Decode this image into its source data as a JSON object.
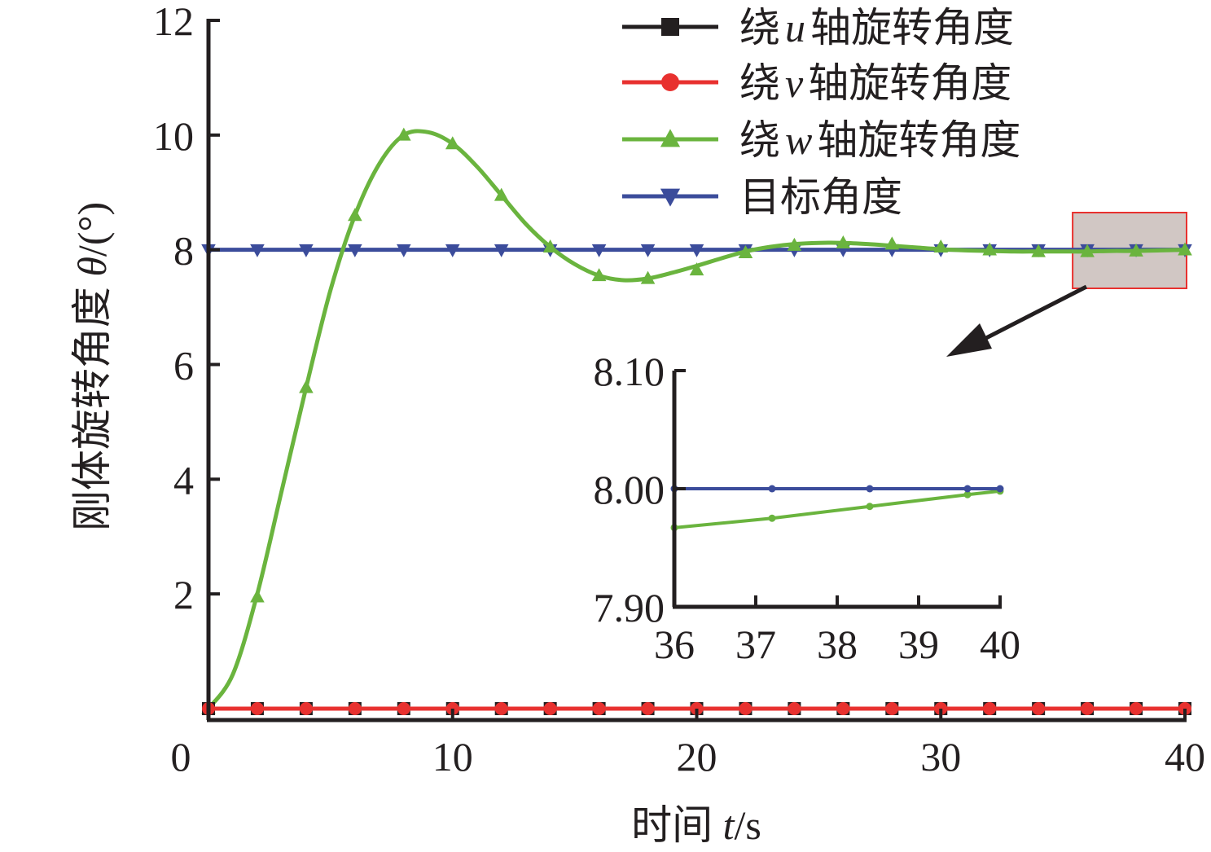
{
  "chart_data": [
    {
      "type": "line",
      "role": "main",
      "xlabel": "时间 t/s",
      "ylabel": "刚体旋转角度 θ/(°)",
      "xlim": [
        0,
        40
      ],
      "ylim": [
        0,
        12
      ],
      "xticks": [
        0,
        10,
        20,
        30,
        40
      ],
      "xtick_labels": [
        "0",
        "10",
        "20",
        "30",
        "40"
      ],
      "yticks": [
        2,
        4,
        6,
        8,
        10,
        12
      ],
      "ytick_labels": [
        "2",
        "4",
        "6",
        "8",
        "10",
        "12"
      ],
      "grid": false,
      "legend_position": "top-right",
      "series": [
        {
          "name": "绕u轴旋转角度",
          "label_parts": [
            "绕",
            "u",
            "轴旋转角度"
          ],
          "color": "#231f20",
          "marker": "square",
          "x": [
            0,
            2,
            4,
            6,
            8,
            10,
            12,
            14,
            16,
            18,
            20,
            22,
            24,
            26,
            28,
            30,
            32,
            34,
            36,
            38,
            40
          ],
          "y": [
            0,
            0,
            0,
            0,
            0,
            0,
            0,
            0,
            0,
            0,
            0,
            0,
            0,
            0,
            0,
            0,
            0,
            0,
            0,
            0,
            0
          ]
        },
        {
          "name": "绕v轴旋转角度",
          "label_parts": [
            "绕",
            "v",
            "轴旋转角度"
          ],
          "color": "#e8312f",
          "marker": "circle",
          "x": [
            0,
            2,
            4,
            6,
            8,
            10,
            12,
            14,
            16,
            18,
            20,
            22,
            24,
            26,
            28,
            30,
            32,
            34,
            36,
            38,
            40
          ],
          "y": [
            0,
            0,
            0,
            0,
            0,
            0,
            0,
            0,
            0,
            0,
            0,
            0,
            0,
            0,
            0,
            0,
            0,
            0,
            0,
            0,
            0
          ]
        },
        {
          "name": "绕w轴旋转角度",
          "label_parts": [
            "绕",
            "w",
            "轴旋转角度"
          ],
          "color": "#6ab43e",
          "marker": "triangle-up",
          "curve": {
            "x": [
              0,
              1,
              2,
              3,
              4,
              5,
              6,
              7,
              8,
              9,
              10,
              11,
              12,
              13,
              14,
              15,
              16,
              17,
              18,
              19,
              20,
              21,
              22,
              23,
              24,
              25,
              26,
              27,
              28,
              29,
              30,
              31,
              32,
              33,
              34,
              35,
              36,
              37,
              38,
              39,
              40
            ],
            "y": [
              0,
              0.6,
              2.0,
              3.8,
              5.6,
              7.3,
              8.6,
              9.5,
              10.0,
              10.05,
              9.85,
              9.45,
              8.95,
              8.45,
              8.05,
              7.75,
              7.55,
              7.47,
              7.5,
              7.6,
              7.72,
              7.85,
              7.97,
              8.05,
              8.1,
              8.12,
              8.12,
              8.1,
              8.07,
              8.04,
              8.01,
              7.99,
              7.98,
              7.97,
              7.97,
              7.97,
              7.97,
              7.98,
              7.98,
              7.99,
              8.0
            ]
          },
          "x": [
            0,
            2,
            4,
            6,
            8,
            10,
            12,
            14,
            16,
            18,
            20,
            22,
            24,
            26,
            28,
            30,
            32,
            34,
            36,
            38,
            40
          ],
          "y": [
            0,
            1.95,
            5.6,
            8.6,
            10.0,
            9.85,
            8.95,
            8.05,
            7.55,
            7.5,
            7.65,
            7.95,
            8.08,
            8.12,
            8.1,
            8.05,
            8.0,
            7.97,
            7.97,
            7.98,
            8.0
          ]
        },
        {
          "name": "目标角度",
          "label_parts": [
            "目标角度",
            "",
            ""
          ],
          "color": "#3b4c9b",
          "marker": "triangle-down",
          "x": [
            0,
            2,
            4,
            6,
            8,
            10,
            12,
            14,
            16,
            18,
            20,
            22,
            24,
            26,
            28,
            30,
            32,
            34,
            36,
            38,
            40
          ],
          "y": [
            8,
            8,
            8,
            8,
            8,
            8,
            8,
            8,
            8,
            8,
            8,
            8,
            8,
            8,
            8,
            8,
            8,
            8,
            8,
            8,
            8
          ]
        }
      ]
    },
    {
      "type": "line",
      "role": "inset",
      "zoom_region": {
        "x": [
          36,
          40
        ],
        "y": [
          7.9,
          8.1
        ]
      },
      "xlim": [
        36,
        40
      ],
      "ylim": [
        7.9,
        8.1
      ],
      "xticks": [
        36,
        37,
        38,
        39,
        40
      ],
      "xtick_labels": [
        "36",
        "37",
        "38",
        "39",
        "40"
      ],
      "yticks": [
        7.9,
        8.0,
        8.1
      ],
      "ytick_labels": [
        "7.90",
        "8.00",
        "8.10"
      ],
      "series": [
        {
          "name": "绕w轴旋转角度",
          "color": "#6ab43e",
          "x": [
            36,
            37.2,
            38.4,
            39.6,
            40
          ],
          "y": [
            7.967,
            7.975,
            7.985,
            7.995,
            7.998
          ]
        },
        {
          "name": "目标角度",
          "color": "#3b4c9b",
          "x": [
            36,
            37.2,
            38.4,
            39.6,
            40
          ],
          "y": [
            8.0,
            8.0,
            8.0,
            8.0,
            8.0
          ]
        }
      ]
    }
  ],
  "colors": {
    "axis": "#231f20",
    "zoom_box_fill": "#d1c7c4",
    "zoom_box_stroke": "#e8312f"
  }
}
